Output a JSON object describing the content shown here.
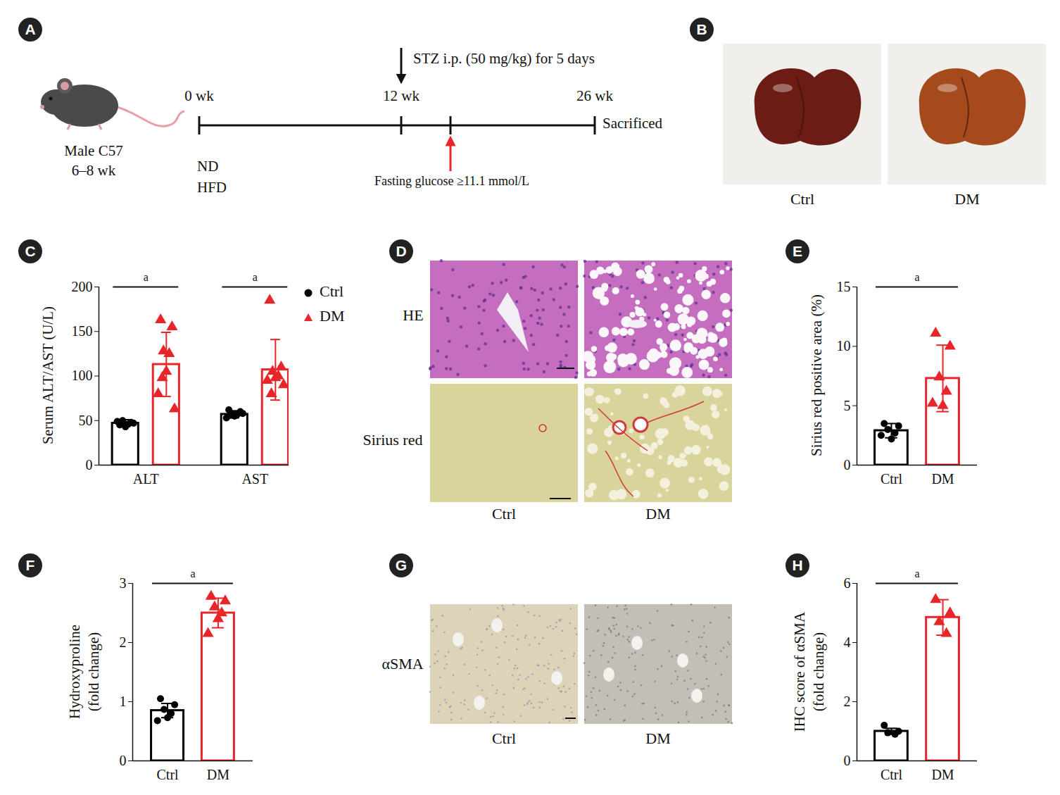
{
  "chart_data": [
    {
      "panel": "C",
      "type": "bar",
      "ylabel": [
        "Serum ALT/AST (U/L)"
      ],
      "categories": [
        "ALT",
        "AST"
      ],
      "series": [
        {
          "name": "Ctrl",
          "color": "#000000",
          "marker": "circle",
          "values": [
            47,
            57
          ],
          "errors": [
            4,
            4
          ],
          "points": [
            [
              45,
              48,
              50,
              46,
              43,
              49,
              47,
              48
            ],
            [
              62,
              60,
              58,
              57,
              55,
              53,
              58,
              56
            ]
          ]
        },
        {
          "name": "DM",
          "color": "#e8262a",
          "marker": "triangle",
          "values": [
            113,
            107
          ],
          "errors": [
            36,
            34
          ],
          "points": [
            [
              163,
              155,
              128,
              125,
              105,
              80,
              63,
              98
            ],
            [
              185,
              110,
              105,
              100,
              98,
              95,
              90,
              80
            ]
          ]
        }
      ],
      "ylim": [
        0,
        200
      ],
      "yticks": [
        0,
        50,
        100,
        150,
        200
      ],
      "legend": "top-right",
      "significance": [
        {
          "category": "ALT",
          "label": "a"
        },
        {
          "category": "AST",
          "label": "a"
        }
      ]
    },
    {
      "panel": "E",
      "type": "bar",
      "ylabel": [
        "Sirius red positive area (%)"
      ],
      "series": [
        {
          "name": "Ctrl",
          "color": "#000000",
          "marker": "circle",
          "values": [
            2.9
          ],
          "errors": [
            0.6
          ],
          "points": [
            [
              3.5,
              3.3,
              3.0,
              2.7,
              2.2,
              2.5
            ]
          ]
        },
        {
          "name": "DM",
          "color": "#e8262a",
          "marker": "triangle",
          "values": [
            7.3
          ],
          "errors": [
            2.8
          ],
          "points": [
            [
              11.1,
              10.0,
              7.4,
              6.2,
              5.0,
              5.2
            ]
          ]
        }
      ],
      "ylim": [
        0,
        15
      ],
      "yticks": [
        0,
        5,
        10,
        15
      ],
      "significance": [
        {
          "label": "a"
        }
      ]
    },
    {
      "panel": "F",
      "type": "bar",
      "ylabel": [
        "Hydroxyproline",
        "(fold change)"
      ],
      "series": [
        {
          "name": "Ctrl",
          "color": "#000000",
          "marker": "circle",
          "values": [
            0.85
          ],
          "errors": [
            0.12
          ],
          "points": [
            [
              1.05,
              0.95,
              0.87,
              0.8,
              0.73,
              0.68
            ]
          ]
        },
        {
          "name": "DM",
          "color": "#e8262a",
          "marker": "triangle",
          "values": [
            2.5
          ],
          "errors": [
            0.25
          ],
          "points": [
            [
              2.78,
              2.7,
              2.6,
              2.5,
              2.4,
              2.15
            ]
          ]
        }
      ],
      "ylim": [
        0,
        3
      ],
      "yticks": [
        0,
        1,
        2,
        3
      ],
      "significance": [
        {
          "label": "a"
        }
      ]
    },
    {
      "panel": "H",
      "type": "bar",
      "ylabel": [
        "IHC score of αSMA",
        "(fold change)"
      ],
      "series": [
        {
          "name": "Ctrl",
          "color": "#000000",
          "marker": "circle",
          "values": [
            1.0
          ],
          "errors": [
            0.1
          ],
          "points": [
            [
              1.2,
              1.0,
              0.95,
              0.9
            ]
          ]
        },
        {
          "name": "DM",
          "color": "#e8262a",
          "marker": "triangle",
          "values": [
            4.85
          ],
          "errors": [
            0.6
          ],
          "points": [
            [
              5.45,
              5.0,
              4.7,
              4.3
            ]
          ]
        }
      ],
      "ylim": [
        0,
        6
      ],
      "yticks": [
        0,
        2,
        4,
        6
      ],
      "significance": [
        {
          "label": "a"
        }
      ]
    }
  ],
  "diagram": {
    "panel": "A",
    "subject": [
      "Male C57",
      "6–8 wk"
    ],
    "timeline": [
      "0 wk",
      "12 wk",
      "26 wk"
    ],
    "end_label": "Sacrificed",
    "diets": [
      "ND",
      "HFD"
    ],
    "treatment": "STZ i.p. (50 mg/kg) for 5 days",
    "criterion": "Fasting glucose ≥11.1 mmol/L"
  },
  "images": [
    {
      "panel": "B",
      "columns": [
        "Ctrl",
        "DM"
      ]
    },
    {
      "panel": "D",
      "rows": [
        "HE",
        "Sirius red"
      ],
      "columns": [
        "Ctrl",
        "DM"
      ]
    },
    {
      "panel": "G",
      "rows": [
        "αSMA"
      ],
      "columns": [
        "Ctrl",
        "DM"
      ]
    }
  ]
}
